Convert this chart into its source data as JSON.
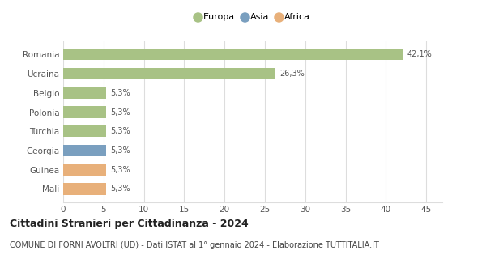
{
  "categories": [
    "Romania",
    "Ucraina",
    "Belgio",
    "Polonia",
    "Turchia",
    "Georgia",
    "Guinea",
    "Mali"
  ],
  "values": [
    42.1,
    26.3,
    5.3,
    5.3,
    5.3,
    5.3,
    5.3,
    5.3
  ],
  "labels": [
    "42,1%",
    "26,3%",
    "5,3%",
    "5,3%",
    "5,3%",
    "5,3%",
    "5,3%",
    "5,3%"
  ],
  "colors": [
    "#a8c285",
    "#a8c285",
    "#a8c285",
    "#a8c285",
    "#a8c285",
    "#7a9fbf",
    "#e8b07a",
    "#e8b07a"
  ],
  "legend": [
    {
      "label": "Europa",
      "color": "#a8c285"
    },
    {
      "label": "Asia",
      "color": "#7a9fbf"
    },
    {
      "label": "Africa",
      "color": "#e8b07a"
    }
  ],
  "xlim": [
    0,
    47
  ],
  "xticks": [
    0,
    5,
    10,
    15,
    20,
    25,
    30,
    35,
    40,
    45
  ],
  "title": "Cittadini Stranieri per Cittadinanza - 2024",
  "subtitle": "COMUNE DI FORNI AVOLTRI (UD) - Dati ISTAT al 1° gennaio 2024 - Elaborazione TUTTITALIA.IT",
  "title_fontsize": 9,
  "subtitle_fontsize": 7,
  "background_color": "#ffffff",
  "grid_color": "#dddddd",
  "bar_height": 0.6
}
